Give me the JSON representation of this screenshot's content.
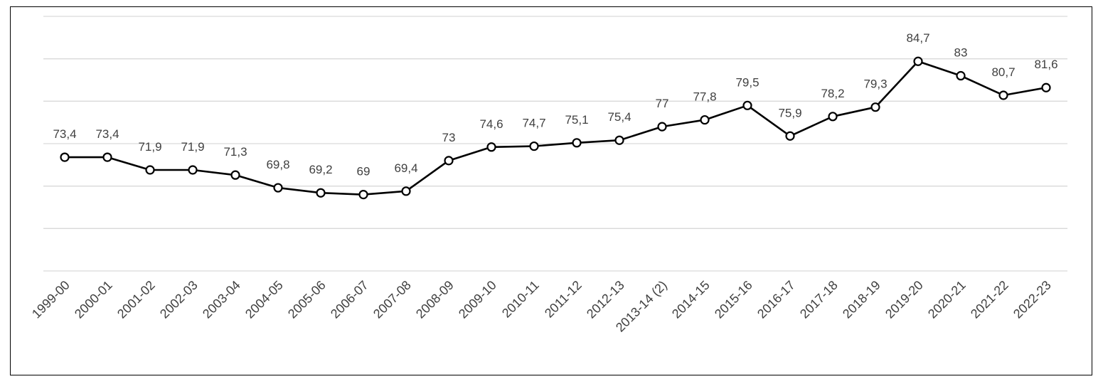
{
  "chart_data": {
    "type": "line",
    "title": "",
    "xlabel": "",
    "ylabel": "",
    "ylim": [
      60,
      90
    ],
    "grid": true,
    "legend": "none",
    "line_color": "#000000",
    "grid_color": "#d9d9d9",
    "label_color": "#404040",
    "categories": [
      "1999-00",
      "2000-01",
      "2001-02",
      "2002-03",
      "2003-04",
      "2004-05",
      "2005-06",
      "2006-07",
      "2007-08",
      "2008-09",
      "2009-10",
      "2010-11",
      "2011-12",
      "2012-13",
      "2013-14 (2)",
      "2014-15",
      "2015-16",
      "2016-17",
      "2017-18",
      "2018-19",
      "2019-20",
      "2020-21",
      "2021-22",
      "2022-23"
    ],
    "values": [
      73.4,
      73.4,
      71.9,
      71.9,
      71.3,
      69.8,
      69.2,
      69,
      69.4,
      73,
      74.6,
      74.7,
      75.1,
      75.4,
      77,
      77.8,
      79.5,
      75.9,
      78.2,
      79.3,
      84.7,
      83,
      80.7,
      81.6
    ],
    "data_labels": [
      "73,4",
      "73,4",
      "71,9",
      "71,9",
      "71,3",
      "69,8",
      "69,2",
      "69",
      "69,4",
      "73",
      "74,6",
      "74,7",
      "75,1",
      "75,4",
      "77",
      "77,8",
      "79,5",
      "75,9",
      "78,2",
      "79,3",
      "84,7",
      "83",
      "80,7",
      "81,6"
    ]
  }
}
